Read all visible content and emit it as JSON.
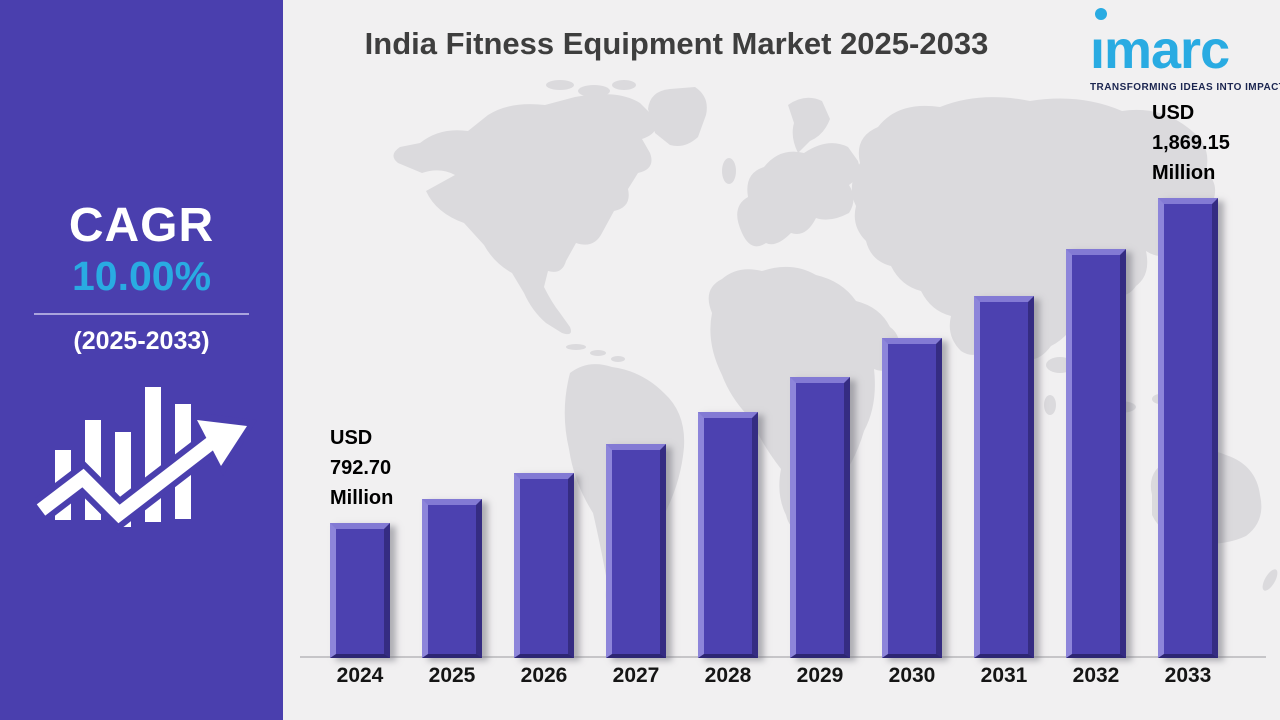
{
  "header": {
    "title": "India Fitness Equipment Market 2025-2033"
  },
  "logo": {
    "wordmark": "imarc",
    "tagline": "TRANSFORMING IDEAS INTO IMPACT",
    "brand_blue": "#29abe2",
    "tagline_color": "#1b2550"
  },
  "sidebar": {
    "cagr_label": "CAGR",
    "cagr_value": "10.00%",
    "period": "(2025-2033)",
    "bg_color": "#4a3fae",
    "icon": "bar-chart-up-arrow-icon"
  },
  "chart_data": {
    "type": "bar",
    "title": "India Fitness Equipment Market 2025-2033",
    "unit": "USD Million",
    "categories": [
      "2024",
      "2025",
      "2026",
      "2027",
      "2028",
      "2029",
      "2030",
      "2031",
      "2032",
      "2033"
    ],
    "values": [
      792.7,
      871.97,
      959.17,
      1055.08,
      1160.59,
      1276.65,
      1404.31,
      1544.75,
      1699.22,
      1869.15
    ],
    "bar_color": "#4c41b0",
    "xlabel": "",
    "ylabel": "",
    "grid": false,
    "legend_position": "none",
    "background": "world-map-watermark",
    "panel_color": "#f1f0f1",
    "map_color": "#dbdadd",
    "annotations": {
      "first": {
        "year": "2024",
        "lines": [
          "USD",
          "792.70",
          "Million"
        ]
      },
      "last": {
        "year": "2033",
        "lines": [
          "USD",
          "1,869.15",
          "Million"
        ]
      }
    }
  }
}
